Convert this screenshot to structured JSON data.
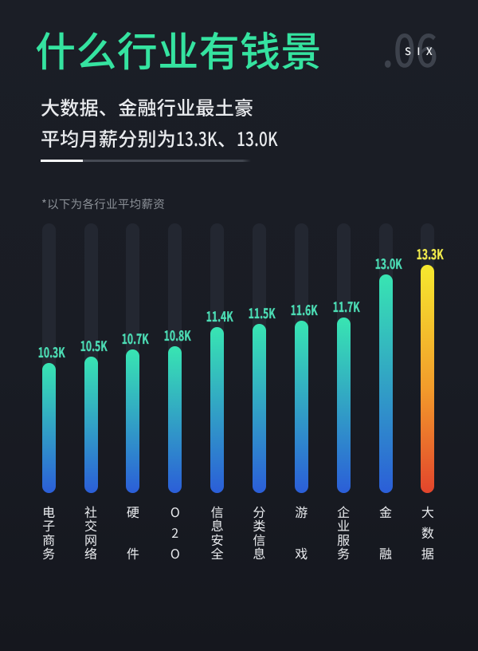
{
  "page": {
    "bg_top": "#1b1e26",
    "bg_bottom": "#15171e"
  },
  "header": {
    "title": "什么行业有钱景",
    "title_color": "#35e3a0",
    "index_number": ".06",
    "index_word": "SIX",
    "subtitle_line1": "大数据、金融行业最土豪",
    "subtitle_line2": "平均月薪分别为13.3K、13.0K"
  },
  "note": "*以下为各行业平均薪资",
  "chart_data": {
    "type": "bar",
    "orientation": "vertical",
    "unit": "K (thousand RMB / month)",
    "title": "各行业平均薪资",
    "categories": [
      "电子商务",
      "社交网络",
      "硬件",
      "O2O",
      "信息安全",
      "分类信息",
      "游戏",
      "企业服务",
      "金融",
      "大数据"
    ],
    "values": [
      10.3,
      10.5,
      10.7,
      10.8,
      11.4,
      11.5,
      11.6,
      11.7,
      13.0,
      13.3
    ],
    "value_labels": [
      "10.3K",
      "10.5K",
      "10.7K",
      "10.8K",
      "11.4K",
      "11.5K",
      "11.6K",
      "11.7K",
      "13.0K",
      "13.3K"
    ],
    "highlight_index": 9,
    "ylim": [
      6.3,
      14.58
    ],
    "grid": false,
    "legend": false,
    "colors": {
      "bar_gradient_top": "#38e5b2",
      "bar_gradient_bottom": "#2b5ed8",
      "highlight_gradient_top": "#f6e92e",
      "highlight_gradient_mid": "#f29a2b",
      "highlight_gradient_bottom": "#e2452c",
      "value_label": "#4cdcb4",
      "highlight_value_label": "#f0ea4c",
      "track": "#232731",
      "category_label": "#e9ebee"
    }
  }
}
